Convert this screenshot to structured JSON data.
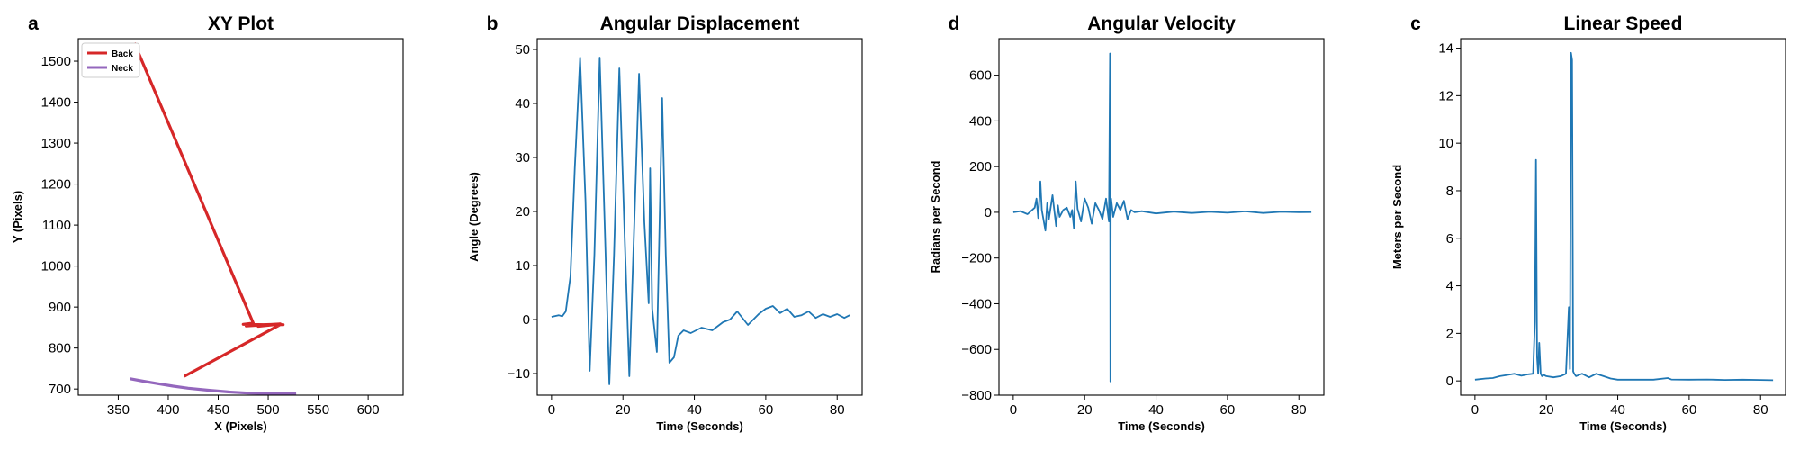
{
  "chart_data": [
    {
      "panel_label": "a",
      "type": "line",
      "title": "XY Plot",
      "xlabel": "X (Pixels)",
      "ylabel": "Y (Pixels)",
      "xlim": [
        310,
        635
      ],
      "ylim": [
        685,
        1555
      ],
      "xticks": [
        350,
        400,
        450,
        500,
        550,
        600
      ],
      "yticks": [
        700,
        800,
        900,
        1000,
        1100,
        1200,
        1300,
        1400,
        1500
      ],
      "legend": "top-left",
      "series": [
        {
          "name": "Back",
          "color": "#d62728",
          "x": [
            366,
            485,
            475,
            497,
            482,
            505,
            478,
            512,
            490,
            510,
            480,
            515,
            512,
            416
          ],
          "y": [
            1545,
            861,
            858,
            857,
            856,
            858,
            854,
            859,
            853,
            858,
            856,
            857,
            857,
            731
          ]
        },
        {
          "name": "Neck",
          "color": "#9467bd",
          "x": [
            362,
            375,
            390,
            405,
            420,
            440,
            460,
            480,
            500,
            515,
            528
          ],
          "y": [
            725,
            719,
            713,
            707,
            702,
            697,
            693,
            690,
            689,
            688,
            689
          ]
        }
      ]
    },
    {
      "panel_label": "b",
      "type": "line",
      "title": "Angular Displacement",
      "xlabel": "Time (Seconds)",
      "ylabel": "Angle (Degrees)",
      "xlim": [
        -4,
        87
      ],
      "ylim": [
        -14,
        52
      ],
      "xticks": [
        0,
        20,
        40,
        60,
        80
      ],
      "yticks": [
        -10,
        0,
        10,
        20,
        30,
        40,
        50
      ],
      "series": [
        {
          "color": "#1f77b4",
          "x": [
            0,
            2,
            3,
            4,
            5.3,
            6.5,
            8,
            9.5,
            10.7,
            12,
            13.5,
            15,
            16.2,
            17.5,
            19,
            20.5,
            21.8,
            23,
            24.5,
            26,
            27.2,
            27.6,
            28.2,
            29.5,
            31,
            32,
            33,
            34.3,
            35.5,
            37,
            39,
            42,
            45,
            48,
            50,
            52,
            55,
            58,
            60,
            62,
            64,
            66,
            68,
            70,
            72,
            74,
            76,
            78,
            80,
            82,
            83.5
          ],
          "y": [
            0.5,
            0.8,
            0.6,
            1.5,
            8,
            28,
            48.5,
            22,
            -9.5,
            12,
            48.5,
            15,
            -12,
            12,
            46.5,
            15,
            -10.5,
            14,
            45.5,
            18,
            3,
            28,
            2,
            -6,
            41,
            12,
            -8,
            -7,
            -3,
            -2,
            -2.5,
            -1.5,
            -2,
            -0.5,
            0,
            1.5,
            -1,
            1,
            2,
            2.5,
            1.2,
            2,
            0.5,
            0.8,
            1.5,
            0.3,
            1,
            0.5,
            1,
            0.3,
            0.8
          ]
        }
      ]
    },
    {
      "panel_label": "d",
      "type": "line",
      "title": "Angular Velocity",
      "xlabel": "Time (Seconds)",
      "ylabel": "Radians per Second",
      "xlim": [
        -4,
        87
      ],
      "ylim": [
        -800,
        760
      ],
      "xticks": [
        0,
        20,
        40,
        60,
        80
      ],
      "yticks": [
        -800,
        -600,
        -400,
        -200,
        0,
        200,
        400,
        600
      ],
      "series": [
        {
          "color": "#1f77b4",
          "x": [
            0,
            2,
            4,
            6,
            6.5,
            7,
            7.6,
            8,
            9,
            9.5,
            10,
            11,
            12,
            12.5,
            13,
            14,
            15,
            16,
            16.5,
            17,
            17.5,
            18,
            19,
            20,
            21,
            22,
            23,
            24,
            25,
            26,
            26.8,
            27.1,
            27.2,
            27.3,
            27.4,
            28,
            29,
            30,
            31,
            32,
            33,
            34,
            36,
            40,
            45,
            50,
            55,
            60,
            65,
            70,
            75,
            80,
            83.5
          ],
          "y": [
            0,
            5,
            -8,
            20,
            60,
            -25,
            135,
            10,
            -80,
            40,
            -30,
            75,
            -60,
            30,
            -20,
            10,
            20,
            -20,
            10,
            -70,
            135,
            15,
            -40,
            60,
            20,
            -50,
            40,
            10,
            -30,
            60,
            -40,
            695,
            -740,
            30,
            60,
            -20,
            40,
            10,
            50,
            -30,
            10,
            0,
            5,
            -5,
            3,
            -3,
            2,
            -2,
            4,
            -3,
            2,
            0,
            1
          ]
        }
      ]
    },
    {
      "panel_label": "c",
      "type": "line",
      "title": "Linear Speed",
      "xlabel": "Time (Seconds)",
      "ylabel": "Meters per Second",
      "xlim": [
        -4,
        87
      ],
      "ylim": [
        -0.6,
        14.4
      ],
      "xticks": [
        0,
        20,
        40,
        60,
        80
      ],
      "yticks": [
        0,
        2,
        4,
        6,
        8,
        10,
        12,
        14
      ],
      "series": [
        {
          "color": "#1f77b4",
          "x": [
            0,
            3,
            5,
            7,
            9,
            11,
            13,
            15,
            16.3,
            16.8,
            17.1,
            17.4,
            17.7,
            18,
            18.4,
            18.8,
            19.3,
            20,
            22,
            24,
            25.5,
            26.3,
            26.6,
            26.9,
            27.2,
            27.5,
            27.8,
            28.3,
            30,
            32,
            34,
            36,
            38,
            40,
            45,
            50,
            54,
            55,
            60,
            65,
            70,
            75,
            80,
            83.5
          ],
          "y": [
            0.05,
            0.1,
            0.12,
            0.2,
            0.25,
            0.3,
            0.22,
            0.28,
            0.3,
            2.5,
            9.3,
            1.0,
            0.3,
            1.6,
            0.3,
            0.2,
            0.25,
            0.2,
            0.15,
            0.2,
            0.3,
            3.1,
            0.5,
            13.8,
            13.5,
            0.4,
            0.3,
            0.2,
            0.3,
            0.15,
            0.3,
            0.2,
            0.1,
            0.05,
            0.05,
            0.05,
            0.12,
            0.06,
            0.05,
            0.06,
            0.04,
            0.05,
            0.04,
            0.03
          ]
        }
      ]
    }
  ]
}
